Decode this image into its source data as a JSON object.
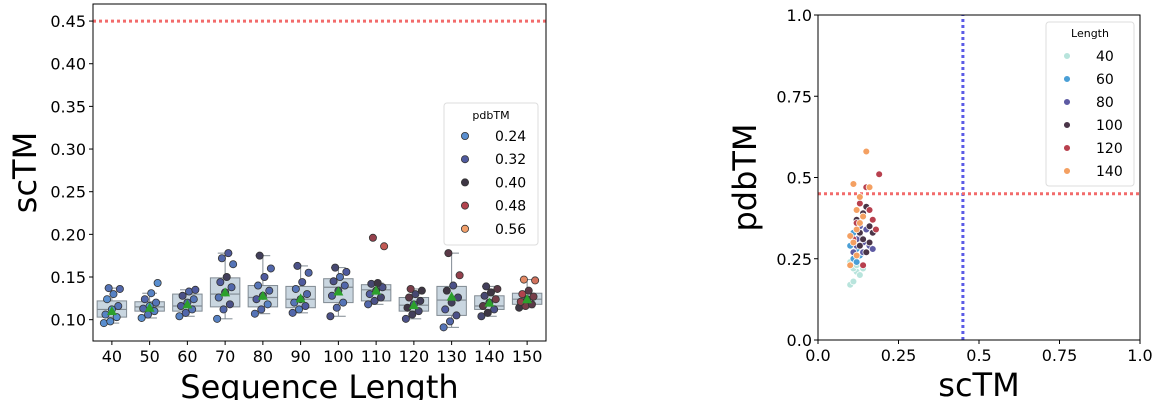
{
  "chart_data": [
    {
      "type": "box",
      "title": "",
      "xlabel": "Sequence Length",
      "ylabel": "scTM",
      "categories": [
        "40",
        "50",
        "60",
        "70",
        "80",
        "90",
        "100",
        "110",
        "120",
        "130",
        "140",
        "150"
      ],
      "yticks": [
        "0.10",
        "0.15",
        "0.20",
        "0.25",
        "0.30",
        "0.35",
        "0.40",
        "0.45"
      ],
      "ylim": [
        0.075,
        0.47
      ],
      "threshold": {
        "y": 0.45,
        "style": "dotted",
        "color": "#f26b6b"
      },
      "boxes": [
        {
          "category": "40",
          "q1": 0.103,
          "median": 0.112,
          "q3": 0.122,
          "whisker_low": 0.096,
          "whisker_high": 0.137,
          "mean": 0.11
        },
        {
          "category": "50",
          "q1": 0.11,
          "median": 0.115,
          "q3": 0.121,
          "whisker_low": 0.102,
          "whisker_high": 0.131,
          "mean": 0.114
        },
        {
          "category": "60",
          "q1": 0.11,
          "median": 0.116,
          "q3": 0.13,
          "whisker_low": 0.104,
          "whisker_high": 0.135,
          "mean": 0.118
        },
        {
          "category": "70",
          "q1": 0.115,
          "median": 0.13,
          "q3": 0.149,
          "whisker_low": 0.101,
          "whisker_high": 0.178,
          "mean": 0.132
        },
        {
          "category": "80",
          "q1": 0.115,
          "median": 0.126,
          "q3": 0.14,
          "whisker_low": 0.107,
          "whisker_high": 0.175,
          "mean": 0.128
        },
        {
          "category": "90",
          "q1": 0.114,
          "median": 0.124,
          "q3": 0.139,
          "whisker_low": 0.108,
          "whisker_high": 0.163,
          "mean": 0.125
        },
        {
          "category": "100",
          "q1": 0.12,
          "median": 0.138,
          "q3": 0.148,
          "whisker_low": 0.104,
          "whisker_high": 0.161,
          "mean": 0.133
        },
        {
          "category": "110",
          "q1": 0.122,
          "median": 0.135,
          "q3": 0.141,
          "whisker_low": 0.118,
          "whisker_high": 0.143,
          "mean": 0.134
        },
        {
          "category": "120",
          "q1": 0.11,
          "median": 0.117,
          "q3": 0.126,
          "whisker_low": 0.101,
          "whisker_high": 0.136,
          "mean": 0.117
        },
        {
          "category": "130",
          "q1": 0.105,
          "median": 0.123,
          "q3": 0.139,
          "whisker_low": 0.091,
          "whisker_high": 0.178,
          "mean": 0.127
        },
        {
          "category": "140",
          "q1": 0.112,
          "median": 0.116,
          "q3": 0.128,
          "whisker_low": 0.104,
          "whisker_high": 0.139,
          "mean": 0.12
        },
        {
          "category": "150",
          "q1": 0.118,
          "median": 0.124,
          "q3": 0.131,
          "whisker_low": 0.114,
          "whisker_high": 0.147,
          "mean": 0.124
        }
      ],
      "points": [
        {
          "category": "40",
          "values": [
            0.096,
            0.098,
            0.103,
            0.106,
            0.112,
            0.116,
            0.124,
            0.13,
            0.136,
            0.137
          ],
          "pdbTM": [
            0.2,
            0.22,
            0.24,
            0.26,
            0.24,
            0.28,
            0.22,
            0.26,
            0.3,
            0.28
          ]
        },
        {
          "category": "50",
          "values": [
            0.102,
            0.106,
            0.11,
            0.113,
            0.116,
            0.12,
            0.124,
            0.131,
            0.143
          ],
          "pdbTM": [
            0.24,
            0.28,
            0.26,
            0.3,
            0.24,
            0.28,
            0.3,
            0.26,
            0.24
          ]
        },
        {
          "category": "60",
          "values": [
            0.104,
            0.108,
            0.112,
            0.116,
            0.12,
            0.124,
            0.128,
            0.133,
            0.135
          ],
          "pdbTM": [
            0.26,
            0.3,
            0.28,
            0.32,
            0.3,
            0.28,
            0.34,
            0.3,
            0.32
          ]
        },
        {
          "category": "70",
          "values": [
            0.101,
            0.112,
            0.118,
            0.126,
            0.132,
            0.138,
            0.144,
            0.15,
            0.165,
            0.172,
            0.178
          ],
          "pdbTM": [
            0.26,
            0.3,
            0.34,
            0.28,
            0.36,
            0.3,
            0.32,
            0.38,
            0.28,
            0.3,
            0.32
          ]
        },
        {
          "category": "80",
          "values": [
            0.107,
            0.112,
            0.118,
            0.124,
            0.128,
            0.134,
            0.14,
            0.15,
            0.16,
            0.175
          ],
          "pdbTM": [
            0.28,
            0.3,
            0.26,
            0.32,
            0.36,
            0.3,
            0.28,
            0.32,
            0.3,
            0.38
          ]
        },
        {
          "category": "90",
          "values": [
            0.108,
            0.112,
            0.116,
            0.12,
            0.124,
            0.13,
            0.136,
            0.144,
            0.155,
            0.163
          ],
          "pdbTM": [
            0.3,
            0.26,
            0.32,
            0.28,
            0.34,
            0.3,
            0.28,
            0.32,
            0.3,
            0.34
          ]
        },
        {
          "category": "100",
          "values": [
            0.104,
            0.114,
            0.12,
            0.128,
            0.134,
            0.14,
            0.145,
            0.15,
            0.156,
            0.161
          ],
          "pdbTM": [
            0.34,
            0.3,
            0.28,
            0.32,
            0.36,
            0.3,
            0.34,
            0.28,
            0.32,
            0.36
          ]
        },
        {
          "category": "110",
          "values": [
            0.118,
            0.122,
            0.126,
            0.13,
            0.134,
            0.138,
            0.142,
            0.143,
            0.186,
            0.196
          ],
          "pdbTM": [
            0.3,
            0.34,
            0.36,
            0.32,
            0.38,
            0.34,
            0.36,
            0.4,
            0.5,
            0.46
          ]
        },
        {
          "category": "120",
          "values": [
            0.101,
            0.106,
            0.11,
            0.114,
            0.118,
            0.122,
            0.126,
            0.13,
            0.134,
            0.136
          ],
          "pdbTM": [
            0.34,
            0.38,
            0.36,
            0.4,
            0.34,
            0.38,
            0.42,
            0.36,
            0.4,
            0.44
          ]
        },
        {
          "category": "130",
          "values": [
            0.091,
            0.098,
            0.105,
            0.112,
            0.12,
            0.126,
            0.134,
            0.14,
            0.152,
            0.178
          ],
          "pdbTM": [
            0.28,
            0.3,
            0.34,
            0.32,
            0.38,
            0.36,
            0.4,
            0.34,
            0.46,
            0.42
          ]
        },
        {
          "category": "140",
          "values": [
            0.104,
            0.108,
            0.112,
            0.116,
            0.12,
            0.124,
            0.128,
            0.132,
            0.136,
            0.139
          ],
          "pdbTM": [
            0.36,
            0.4,
            0.34,
            0.42,
            0.38,
            0.44,
            0.36,
            0.4,
            0.42,
            0.38
          ]
        },
        {
          "category": "150",
          "values": [
            0.114,
            0.116,
            0.118,
            0.121,
            0.124,
            0.127,
            0.13,
            0.134,
            0.146,
            0.147
          ],
          "pdbTM": [
            0.4,
            0.44,
            0.42,
            0.46,
            0.4,
            0.44,
            0.48,
            0.42,
            0.52,
            0.54
          ]
        }
      ],
      "legend": {
        "title": "pdbTM",
        "placement": "right",
        "entries": [
          {
            "label": "0.24",
            "color": "#5a8fd0"
          },
          {
            "label": "0.32",
            "color": "#4f5a9e"
          },
          {
            "label": "0.40",
            "color": "#3e3644"
          },
          {
            "label": "0.48",
            "color": "#b2434e"
          },
          {
            "label": "0.56",
            "color": "#f2a06b"
          }
        ]
      },
      "colors": {
        "box_fill": "#c9d6e0",
        "box_edge": "#808a92",
        "mean_marker": "#2ca02c",
        "threshold": "#f26b6b"
      }
    },
    {
      "type": "scatter",
      "title": "",
      "xlabel": "scTM",
      "ylabel": "pdbTM",
      "xlim": [
        0.0,
        1.0
      ],
      "ylim": [
        0.0,
        1.0
      ],
      "xticks": [
        "0.0",
        "0.25",
        "0.5",
        "0.75",
        "1.0"
      ],
      "yticks": [
        "0.0",
        "0.25",
        "0.5",
        "0.75",
        "1.0"
      ],
      "vline": {
        "x": 0.45,
        "color": "#5b5be6",
        "style": "dotted"
      },
      "hline": {
        "y": 0.45,
        "color": "#f26b6b",
        "style": "dotted"
      },
      "series": [
        {
          "name": "40",
          "color": "#b8e4dc",
          "points": [
            [
              0.1,
              0.17
            ],
            [
              0.11,
              0.18
            ],
            [
              0.12,
              0.21
            ],
            [
              0.13,
              0.2
            ],
            [
              0.11,
              0.22
            ],
            [
              0.1,
              0.24
            ],
            [
              0.12,
              0.23
            ],
            [
              0.14,
              0.22
            ],
            [
              0.13,
              0.26
            ],
            [
              0.12,
              0.27
            ]
          ]
        },
        {
          "name": "60",
          "color": "#4a9fd6",
          "points": [
            [
              0.11,
              0.25
            ],
            [
              0.12,
              0.28
            ],
            [
              0.13,
              0.26
            ],
            [
              0.1,
              0.29
            ],
            [
              0.12,
              0.31
            ],
            [
              0.14,
              0.27
            ],
            [
              0.11,
              0.33
            ],
            [
              0.13,
              0.3
            ],
            [
              0.12,
              0.24
            ]
          ]
        },
        {
          "name": "80",
          "color": "#5d5aa3",
          "points": [
            [
              0.12,
              0.29
            ],
            [
              0.13,
              0.32
            ],
            [
              0.14,
              0.3
            ],
            [
              0.16,
              0.29
            ],
            [
              0.11,
              0.27
            ],
            [
              0.15,
              0.34
            ],
            [
              0.17,
              0.28
            ],
            [
              0.13,
              0.35
            ],
            [
              0.14,
              0.27
            ],
            [
              0.12,
              0.31
            ]
          ]
        },
        {
          "name": "100",
          "color": "#4a3548",
          "points": [
            [
              0.13,
              0.33
            ],
            [
              0.14,
              0.31
            ],
            [
              0.15,
              0.27
            ],
            [
              0.16,
              0.35
            ],
            [
              0.12,
              0.37
            ],
            [
              0.15,
              0.41
            ],
            [
              0.17,
              0.33
            ],
            [
              0.14,
              0.39
            ],
            [
              0.13,
              0.29
            ],
            [
              0.16,
              0.3
            ]
          ]
        },
        {
          "name": "120",
          "color": "#b8404e",
          "points": [
            [
              0.12,
              0.36
            ],
            [
              0.14,
              0.38
            ],
            [
              0.15,
              0.47
            ],
            [
              0.16,
              0.4
            ],
            [
              0.13,
              0.42
            ],
            [
              0.18,
              0.34
            ],
            [
              0.19,
              0.51
            ],
            [
              0.11,
              0.31
            ],
            [
              0.17,
              0.37
            ],
            [
              0.14,
              0.23
            ]
          ]
        },
        {
          "name": "140",
          "color": "#f4a062",
          "points": [
            [
              0.1,
              0.32
            ],
            [
              0.11,
              0.3
            ],
            [
              0.12,
              0.34
            ],
            [
              0.13,
              0.36
            ],
            [
              0.14,
              0.38
            ],
            [
              0.12,
              0.4
            ],
            [
              0.11,
              0.48
            ],
            [
              0.15,
              0.58
            ],
            [
              0.13,
              0.44
            ],
            [
              0.16,
              0.47
            ],
            [
              0.1,
              0.23
            ],
            [
              0.12,
              0.26
            ]
          ]
        }
      ],
      "legend": {
        "title": "Length",
        "placement": "top-right"
      }
    }
  ]
}
